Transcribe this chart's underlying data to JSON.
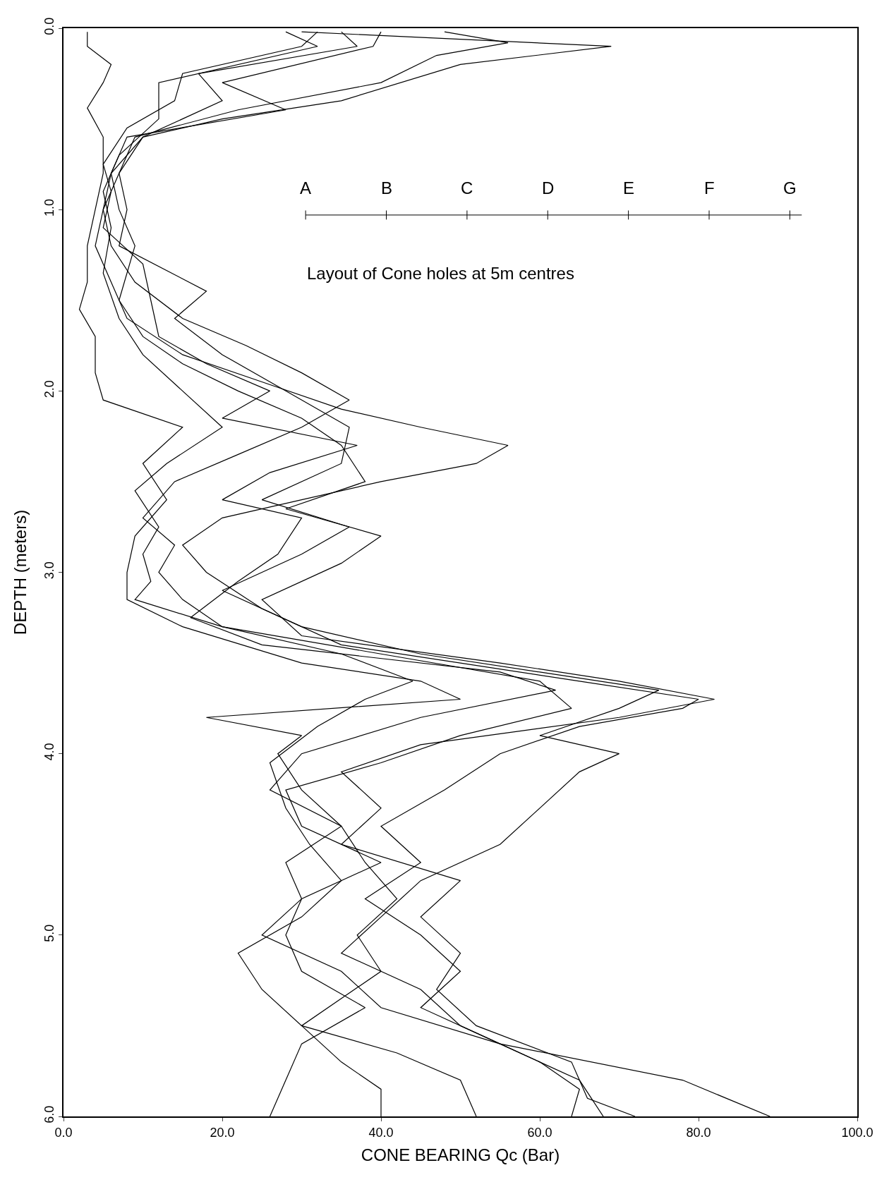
{
  "chart_data": {
    "type": "line",
    "xlabel": "CONE BEARING Qc (Bar)",
    "ylabel": "DEPTH (meters)",
    "xlim": [
      0,
      100
    ],
    "xticks": [
      {
        "value": 0,
        "label": "0.0"
      },
      {
        "value": 20,
        "label": "20.0"
      },
      {
        "value": 40,
        "label": "40.0"
      },
      {
        "value": 60,
        "label": "60.0"
      },
      {
        "value": 80,
        "label": "80.0"
      },
      {
        "value": 100,
        "label": "100.0"
      }
    ],
    "ylim": [
      6,
      0
    ],
    "yticks": [
      {
        "value": 0,
        "label": "0.0"
      },
      {
        "value": 1,
        "label": "1.0"
      },
      {
        "value": 2,
        "label": "2.0"
      },
      {
        "value": 3,
        "label": "3.0"
      },
      {
        "value": 4,
        "label": "4.0"
      },
      {
        "value": 5,
        "label": "5.0"
      },
      {
        "value": 6,
        "label": "6.0"
      }
    ],
    "marker": "none",
    "line_style": "solid",
    "annotations": [
      "A",
      "B",
      "C",
      "D",
      "E",
      "F",
      "G",
      "Layout of Cone holes at 5m centres"
    ],
    "series": [
      {
        "color": "#000000",
        "x": [
          30,
          69,
          50,
          35,
          20,
          10,
          6,
          5,
          4,
          6,
          8,
          15,
          25,
          35,
          45,
          56,
          52,
          40,
          30,
          20,
          15,
          18,
          25,
          35,
          50,
          65,
          80,
          78,
          65,
          55,
          48,
          40,
          45,
          38,
          45,
          50,
          45,
          55,
          65,
          68
        ],
        "values": [
          0.02,
          0.1,
          0.2,
          0.4,
          0.5,
          0.6,
          0.8,
          1.0,
          1.2,
          1.4,
          1.6,
          1.8,
          1.95,
          2.1,
          2.2,
          2.3,
          2.4,
          2.5,
          2.6,
          2.7,
          2.85,
          3.0,
          3.2,
          3.4,
          3.5,
          3.6,
          3.7,
          3.75,
          3.85,
          4.0,
          4.2,
          4.4,
          4.6,
          4.8,
          5.0,
          5.2,
          5.4,
          5.6,
          5.8,
          6.0
        ]
      },
      {
        "color": "#000000",
        "x": [
          3,
          3,
          6,
          5,
          3,
          5,
          5,
          4,
          3,
          3,
          2,
          4,
          4,
          5,
          15,
          10,
          13,
          9,
          8,
          8,
          15,
          30,
          45,
          50,
          18,
          30,
          27,
          30,
          35,
          28,
          30,
          28,
          30,
          38,
          30,
          28,
          26
        ],
        "values": [
          0.02,
          0.1,
          0.2,
          0.3,
          0.44,
          0.6,
          0.8,
          1.0,
          1.2,
          1.4,
          1.55,
          1.7,
          1.9,
          2.05,
          2.2,
          2.4,
          2.6,
          2.8,
          3.0,
          3.15,
          3.3,
          3.5,
          3.6,
          3.7,
          3.8,
          3.9,
          4.0,
          4.2,
          4.4,
          4.6,
          4.8,
          5.0,
          5.2,
          5.4,
          5.6,
          5.8,
          6.0
        ]
      },
      {
        "color": "#000000",
        "x": [
          35,
          37,
          17,
          20,
          10,
          7,
          8,
          7,
          18,
          14,
          20,
          28,
          36,
          35,
          25,
          36,
          30,
          20,
          30,
          45,
          60,
          75,
          70,
          60,
          70,
          65,
          60,
          55,
          45,
          40,
          35,
          45,
          50,
          60,
          65,
          64
        ],
        "values": [
          0.02,
          0.1,
          0.25,
          0.4,
          0.6,
          0.8,
          1.0,
          1.2,
          1.45,
          1.6,
          1.8,
          2.0,
          2.2,
          2.4,
          2.6,
          2.75,
          2.9,
          3.1,
          3.3,
          3.45,
          3.55,
          3.65,
          3.75,
          3.9,
          4.0,
          4.1,
          4.3,
          4.5,
          4.7,
          4.9,
          5.1,
          5.3,
          5.5,
          5.7,
          5.85,
          6.0
        ]
      },
      {
        "color": "#000000",
        "x": [
          40,
          39,
          20,
          28,
          8,
          6,
          7,
          9,
          7,
          10,
          15,
          22,
          30,
          35,
          38,
          28,
          40,
          35,
          25,
          30,
          55,
          70,
          82,
          70,
          45,
          35,
          40,
          35,
          50,
          45,
          50,
          47,
          52,
          64,
          66,
          72
        ],
        "values": [
          0.02,
          0.1,
          0.3,
          0.45,
          0.6,
          0.8,
          1.0,
          1.2,
          1.5,
          1.7,
          1.85,
          2.0,
          2.15,
          2.3,
          2.5,
          2.65,
          2.8,
          2.95,
          3.15,
          3.35,
          3.5,
          3.6,
          3.7,
          3.8,
          3.95,
          4.1,
          4.3,
          4.5,
          4.7,
          4.9,
          5.1,
          5.3,
          5.5,
          5.7,
          5.9,
          6.0
        ]
      },
      {
        "color": "#000000",
        "x": [
          48,
          56,
          47,
          40,
          22,
          9,
          7,
          5,
          6,
          9,
          15,
          23,
          30,
          36,
          30,
          22,
          14,
          10,
          14,
          12,
          15,
          20,
          40,
          60,
          64,
          50,
          40,
          28,
          30,
          40,
          30,
          25,
          35,
          40,
          55,
          78,
          89
        ],
        "values": [
          0.02,
          0.08,
          0.15,
          0.3,
          0.45,
          0.6,
          0.8,
          1.0,
          1.2,
          1.4,
          1.6,
          1.75,
          1.9,
          2.05,
          2.2,
          2.35,
          2.5,
          2.7,
          2.85,
          3.0,
          3.15,
          3.3,
          3.45,
          3.6,
          3.75,
          3.9,
          4.05,
          4.2,
          4.4,
          4.6,
          4.8,
          5.0,
          5.2,
          5.4,
          5.6,
          5.8,
          6.0
        ]
      },
      {
        "color": "#000000",
        "x": [
          32,
          30,
          15,
          14,
          8,
          5,
          6,
          5,
          10,
          11,
          12,
          18,
          26,
          20,
          37,
          26,
          20,
          30,
          27,
          22,
          16,
          25,
          55,
          62,
          45,
          30,
          26,
          35,
          38,
          42,
          37,
          40,
          35,
          30,
          35,
          40,
          40
        ],
        "values": [
          0.02,
          0.1,
          0.25,
          0.4,
          0.55,
          0.75,
          0.9,
          1.1,
          1.3,
          1.5,
          1.7,
          1.85,
          2.0,
          2.15,
          2.3,
          2.45,
          2.6,
          2.7,
          2.9,
          3.05,
          3.25,
          3.4,
          3.55,
          3.65,
          3.8,
          4.0,
          4.2,
          4.4,
          4.6,
          4.8,
          5.0,
          5.2,
          5.35,
          5.5,
          5.7,
          5.85,
          6.0
        ]
      },
      {
        "color": "#000000",
        "x": [
          28,
          32,
          12,
          12,
          7,
          5,
          6,
          5,
          7,
          10,
          15,
          20,
          13,
          9,
          12,
          10,
          11,
          9,
          20,
          35,
          44,
          38,
          32,
          26,
          28,
          31,
          35,
          30,
          22,
          25,
          30,
          42,
          50,
          52
        ],
        "values": [
          0.02,
          0.1,
          0.3,
          0.5,
          0.7,
          0.9,
          1.1,
          1.35,
          1.6,
          1.8,
          2.0,
          2.2,
          2.4,
          2.55,
          2.75,
          2.9,
          3.05,
          3.15,
          3.3,
          3.45,
          3.6,
          3.7,
          3.85,
          4.05,
          4.3,
          4.5,
          4.7,
          4.9,
          5.1,
          5.3,
          5.5,
          5.65,
          5.8,
          6.0
        ]
      }
    ]
  }
}
